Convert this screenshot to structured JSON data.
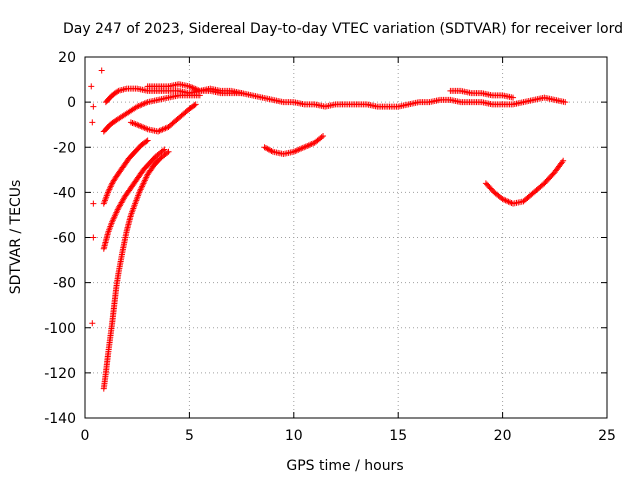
{
  "chart_data": {
    "type": "scatter",
    "title": "Day 247 of 2023, Sidereal Day-to-day VTEC variation (SDTVAR) for receiver lord",
    "xlabel": "GPS time / hours",
    "ylabel": "SDTVAR / TECUs",
    "xlim": [
      0,
      25
    ],
    "ylim": [
      -140,
      20
    ],
    "xticks": [
      0,
      5,
      10,
      15,
      20,
      25
    ],
    "yticks": [
      -140,
      -120,
      -100,
      -80,
      -60,
      -40,
      -20,
      0,
      20
    ],
    "grid": true,
    "marker": "+",
    "color": "#ff0000",
    "series": [
      {
        "name": "arc-near-zero-main",
        "points": [
          [
            1.0,
            0
          ],
          [
            1.3,
            3
          ],
          [
            1.6,
            5
          ],
          [
            2.0,
            6
          ],
          [
            2.5,
            6
          ],
          [
            3.0,
            5
          ],
          [
            3.5,
            5
          ],
          [
            4.0,
            5
          ],
          [
            4.5,
            5
          ],
          [
            5.0,
            4
          ],
          [
            5.5,
            5
          ],
          [
            6.0,
            5
          ],
          [
            6.5,
            4
          ],
          [
            7.0,
            4
          ],
          [
            7.5,
            4
          ],
          [
            8.0,
            3
          ],
          [
            8.5,
            2
          ],
          [
            9.0,
            1
          ],
          [
            9.5,
            0
          ],
          [
            10.0,
            0
          ],
          [
            10.5,
            -1
          ],
          [
            11.0,
            -1
          ],
          [
            11.5,
            -2
          ],
          [
            12.0,
            -1
          ],
          [
            12.5,
            -1
          ],
          [
            13.0,
            -1
          ],
          [
            13.5,
            -1
          ],
          [
            14.0,
            -2
          ],
          [
            14.5,
            -2
          ],
          [
            15.0,
            -2
          ],
          [
            15.5,
            -1
          ],
          [
            16.0,
            0
          ],
          [
            16.5,
            0
          ],
          [
            17.0,
            1
          ],
          [
            17.5,
            1
          ],
          [
            18.0,
            0
          ],
          [
            18.5,
            0
          ],
          [
            19.0,
            0
          ],
          [
            19.5,
            -1
          ],
          [
            20.0,
            -1
          ],
          [
            20.5,
            -1
          ],
          [
            21.0,
            0
          ],
          [
            21.5,
            1
          ],
          [
            22.0,
            2
          ],
          [
            22.5,
            1
          ],
          [
            23.0,
            0
          ]
        ]
      },
      {
        "name": "arc-upper-hump",
        "points": [
          [
            3.0,
            7
          ],
          [
            3.5,
            7
          ],
          [
            4.0,
            7
          ],
          [
            4.5,
            8
          ],
          [
            5.0,
            7
          ],
          [
            5.5,
            5
          ],
          [
            6.0,
            6
          ],
          [
            6.5,
            5
          ],
          [
            7.0,
            5
          ],
          [
            7.5,
            4
          ]
        ]
      },
      {
        "name": "arc-late-upper",
        "points": [
          [
            17.5,
            5
          ],
          [
            18.0,
            5
          ],
          [
            18.5,
            4
          ],
          [
            19.0,
            4
          ],
          [
            19.5,
            3
          ],
          [
            20.0,
            3
          ],
          [
            20.5,
            2
          ]
        ]
      },
      {
        "name": "arc-rising-from-minus-13",
        "points": [
          [
            0.9,
            -13
          ],
          [
            1.2,
            -10
          ],
          [
            1.5,
            -8
          ],
          [
            2.0,
            -5
          ],
          [
            2.5,
            -2
          ],
          [
            3.0,
            0
          ],
          [
            3.5,
            1
          ],
          [
            4.0,
            2
          ],
          [
            4.5,
            3
          ],
          [
            5.0,
            3
          ],
          [
            5.5,
            3
          ]
        ]
      },
      {
        "name": "arc-dip-minus-13",
        "points": [
          [
            2.2,
            -9
          ],
          [
            2.5,
            -10
          ],
          [
            3.0,
            -12
          ],
          [
            3.5,
            -13
          ],
          [
            4.0,
            -11
          ],
          [
            4.5,
            -7
          ],
          [
            5.0,
            -3
          ],
          [
            5.3,
            -1
          ]
        ]
      },
      {
        "name": "arc-from-minus-45",
        "points": [
          [
            0.9,
            -45
          ],
          [
            1.1,
            -40
          ],
          [
            1.3,
            -36
          ],
          [
            1.5,
            -33
          ],
          [
            1.8,
            -29
          ],
          [
            2.1,
            -25
          ],
          [
            2.4,
            -22
          ],
          [
            2.7,
            -19
          ],
          [
            3.0,
            -17
          ]
        ]
      },
      {
        "name": "arc-from-minus-65",
        "points": [
          [
            0.9,
            -65
          ],
          [
            1.1,
            -58
          ],
          [
            1.3,
            -53
          ],
          [
            1.6,
            -47
          ],
          [
            1.9,
            -42
          ],
          [
            2.2,
            -38
          ],
          [
            2.5,
            -34
          ],
          [
            2.8,
            -30
          ],
          [
            3.1,
            -27
          ],
          [
            3.4,
            -24
          ],
          [
            3.8,
            -21
          ]
        ]
      },
      {
        "name": "arc-from-minus-127",
        "points": [
          [
            0.9,
            -127
          ],
          [
            1.0,
            -120
          ],
          [
            1.1,
            -112
          ],
          [
            1.2,
            -105
          ],
          [
            1.3,
            -98
          ],
          [
            1.4,
            -90
          ],
          [
            1.5,
            -82
          ],
          [
            1.6,
            -76
          ],
          [
            1.8,
            -66
          ],
          [
            2.0,
            -57
          ],
          [
            2.2,
            -50
          ],
          [
            2.4,
            -45
          ],
          [
            2.6,
            -40
          ],
          [
            2.8,
            -36
          ],
          [
            3.0,
            -32
          ],
          [
            3.3,
            -28
          ],
          [
            3.6,
            -25
          ],
          [
            4.0,
            -22
          ]
        ]
      },
      {
        "name": "arc-dip-minus-23",
        "points": [
          [
            8.6,
            -20
          ],
          [
            9.0,
            -22
          ],
          [
            9.5,
            -23
          ],
          [
            10.0,
            -22
          ],
          [
            10.5,
            -20
          ],
          [
            11.0,
            -18
          ],
          [
            11.4,
            -15
          ]
        ]
      },
      {
        "name": "arc-dip-minus-45",
        "points": [
          [
            19.2,
            -36
          ],
          [
            19.6,
            -40
          ],
          [
            20.0,
            -43
          ],
          [
            20.5,
            -45
          ],
          [
            21.0,
            -44
          ],
          [
            21.5,
            -40
          ],
          [
            22.0,
            -36
          ],
          [
            22.5,
            -31
          ],
          [
            22.9,
            -26
          ]
        ]
      },
      {
        "name": "isolated-points",
        "points": [
          [
            0.3,
            7
          ],
          [
            0.4,
            -2
          ],
          [
            0.35,
            -9
          ],
          [
            0.4,
            -45
          ],
          [
            0.4,
            -60
          ],
          [
            0.35,
            -98
          ],
          [
            0.8,
            14
          ]
        ]
      }
    ]
  }
}
